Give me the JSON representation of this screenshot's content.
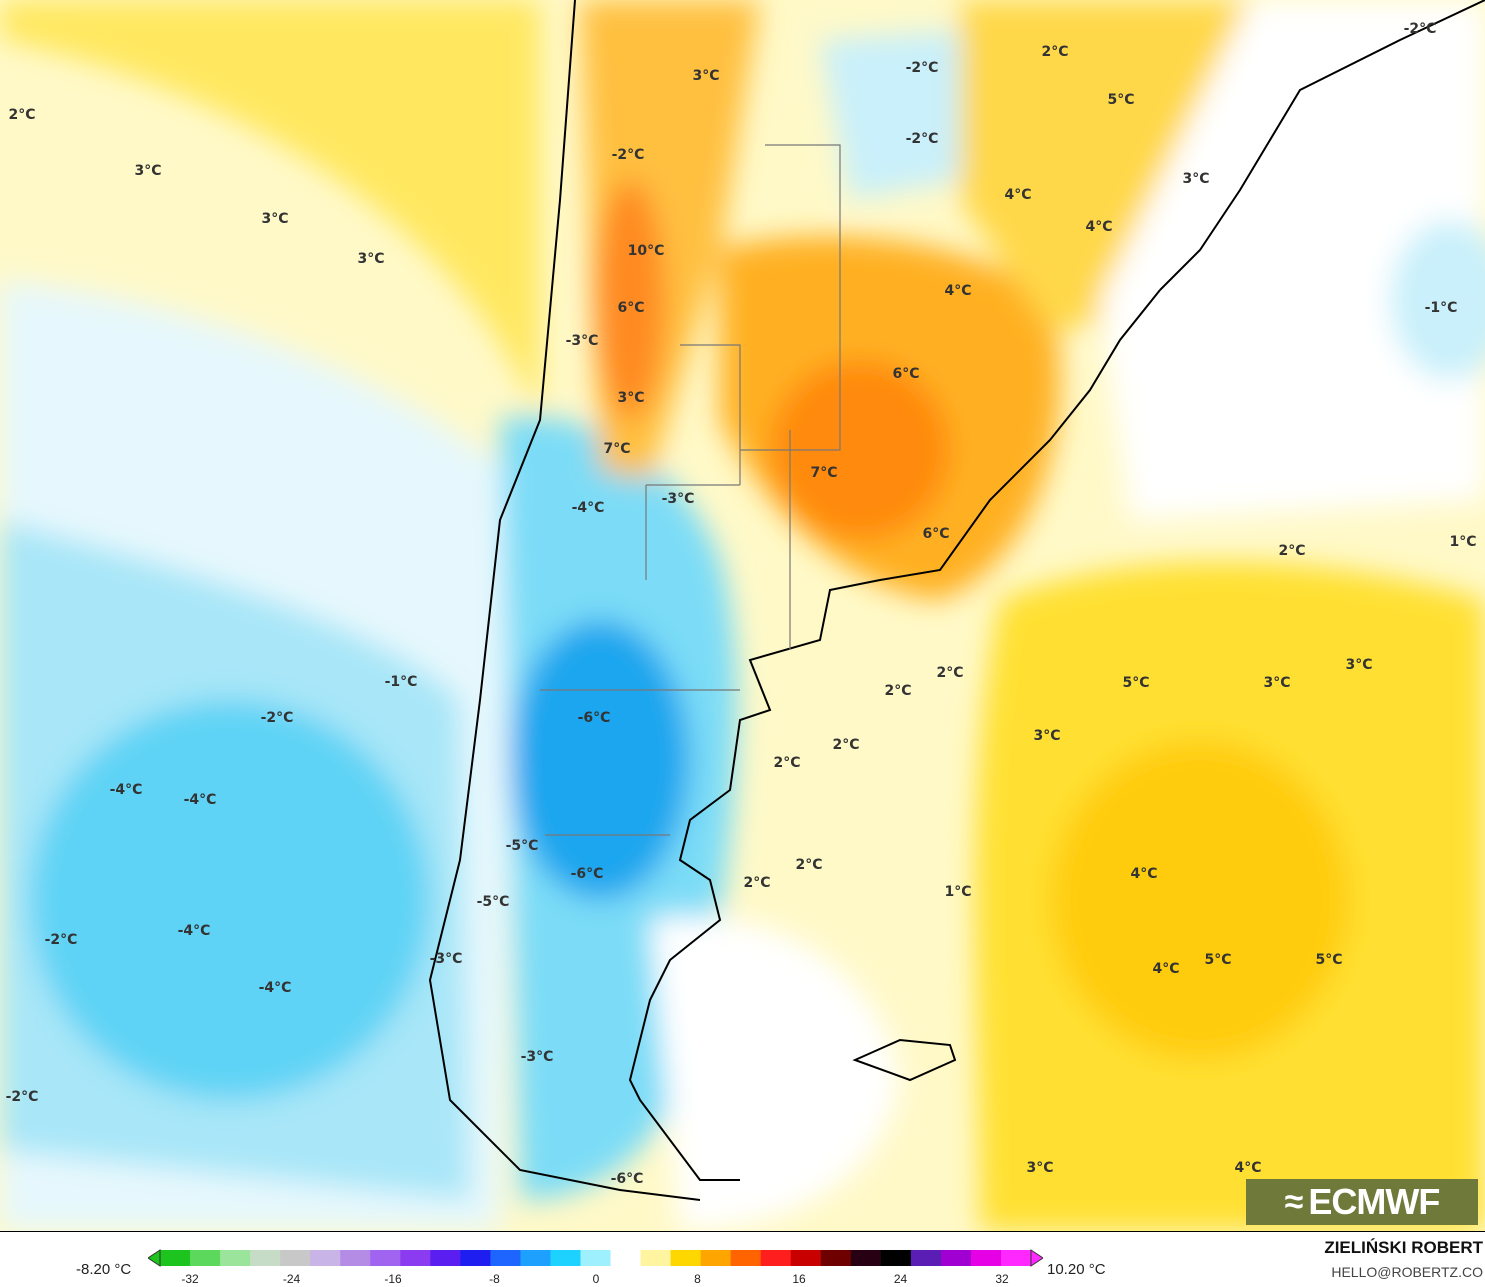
{
  "map": {
    "variable_unit": "°C",
    "labels": [
      "2°C",
      "3°C",
      "3°C",
      "3°C",
      "3°C",
      "-2°C",
      "10°C",
      "6°C",
      "-3°C",
      "3°C",
      "7°C",
      "-4°C",
      "-3°C",
      "-2°C",
      "-2°C",
      "2°C",
      "5°C",
      "4°C",
      "3°C",
      "4°C",
      "4°C",
      "-2°C",
      "-1°C",
      "6°C",
      "7°C",
      "6°C",
      "2°C",
      "1°C",
      "3°C",
      "5°C",
      "3°C",
      "2°C",
      "2°C",
      "2°C",
      "2°C",
      "3°C",
      "-1°C",
      "-2°C",
      "-6°C",
      "-4°C",
      "-4°C",
      "-5°C",
      "-6°C",
      "2°C",
      "2°C",
      "1°C",
      "4°C",
      "-5°C",
      "-4°C",
      "-2°C",
      "-3°C",
      "4°C",
      "5°C",
      "5°C",
      "-4°C",
      "-3°C",
      "-2°C",
      "3°C",
      "4°C",
      "-6°C"
    ],
    "colors": {
      "cold_light": "#c9f0fb",
      "cold": "#5fd3f5",
      "cold_deep": "#1aa6ef",
      "warm_light": "#fff5b0",
      "warm": "#ffe033",
      "warm_deep": "#ffb200",
      "hot": "#ff7a10"
    }
  },
  "logo": {
    "text": "ECMWF"
  },
  "colorbar": {
    "min_label": "-8.20 °C",
    "max_label": "10.20 °C",
    "ticks": [
      "-32",
      "-24",
      "-16",
      "-8",
      "0",
      "8",
      "16",
      "24",
      "32"
    ],
    "colors": [
      "#1ec41e",
      "#5cd85c",
      "#9be49b",
      "#c6dcc6",
      "#c8c8c8",
      "#c8b4e6",
      "#b48ce6",
      "#a064f0",
      "#8c3cf0",
      "#5a1ef0",
      "#1e1ef0",
      "#1e64ff",
      "#1ea0ff",
      "#1ed2ff",
      "#9ef0ff",
      "#ffffff",
      "#fff5a0",
      "#ffd700",
      "#ffa500",
      "#ff6400",
      "#ff1e1e",
      "#c80000",
      "#6e0000",
      "#280014",
      "#000000",
      "#5a1eb4",
      "#a000d2",
      "#e600e6",
      "#ff28ff"
    ]
  },
  "credit": {
    "author": "ZIELIŃSKI ROBERT",
    "email": "HELLO@ROBERTZ.CO"
  }
}
